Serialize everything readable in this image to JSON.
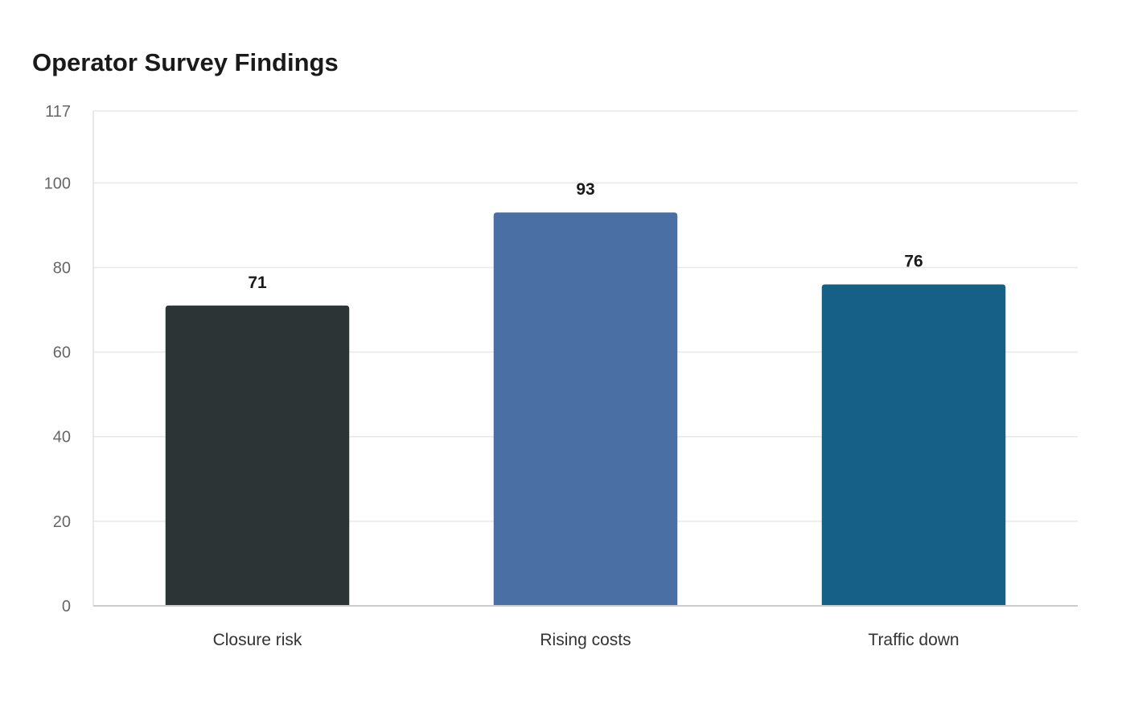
{
  "chart_data": {
    "type": "bar",
    "title": "Operator Survey Findings",
    "categories": [
      "Closure risk",
      "Rising costs",
      "Traffic down"
    ],
    "values": [
      71,
      93,
      76
    ],
    "colors": [
      "#2d3436",
      "#4a6fa5",
      "#166088"
    ],
    "yticks": [
      0,
      20,
      40,
      60,
      80,
      100,
      117
    ],
    "ylim": [
      0,
      117
    ],
    "xlabel": "",
    "ylabel": "",
    "grid": true,
    "legend": "none",
    "data_labels": true
  }
}
